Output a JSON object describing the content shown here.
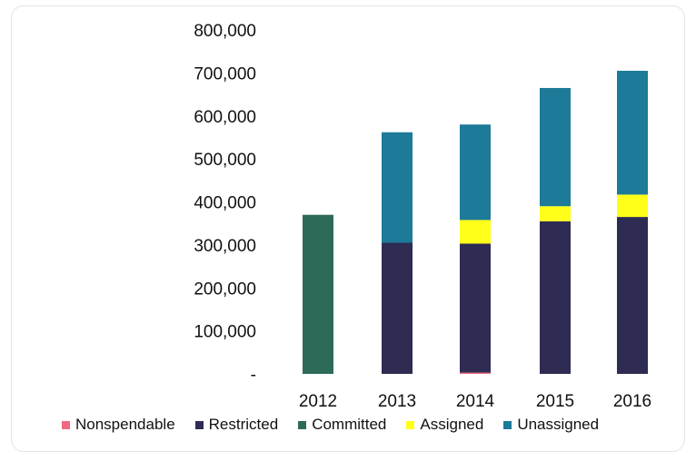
{
  "chart_data": {
    "type": "bar",
    "stacked": true,
    "categories": [
      "2012",
      "2013",
      "2014",
      "2015",
      "2016"
    ],
    "series": [
      {
        "name": "Nonspendable",
        "color": "#f06a7d",
        "values": [
          0,
          0,
          3000,
          0,
          0
        ]
      },
      {
        "name": "Restricted",
        "color": "#2e2c52",
        "values": [
          0,
          305000,
          300000,
          355000,
          365000
        ]
      },
      {
        "name": "Committed",
        "color": "#2d6a5a",
        "values": [
          370000,
          0,
          0,
          0,
          0
        ]
      },
      {
        "name": "Assigned",
        "color": "#ffff1a",
        "values": [
          0,
          0,
          55000,
          35000,
          52000
        ]
      },
      {
        "name": "Unassigned",
        "color": "#1d7a99",
        "values": [
          0,
          257000,
          222000,
          275000,
          288000
        ]
      }
    ],
    "yticks": [
      "-",
      "100,000",
      "200,000",
      "300,000",
      "400,000",
      "500,000",
      "600,000",
      "700,000",
      "800,000"
    ],
    "ylim": [
      0,
      800000
    ],
    "legend_position": "bottom",
    "grid": false
  }
}
